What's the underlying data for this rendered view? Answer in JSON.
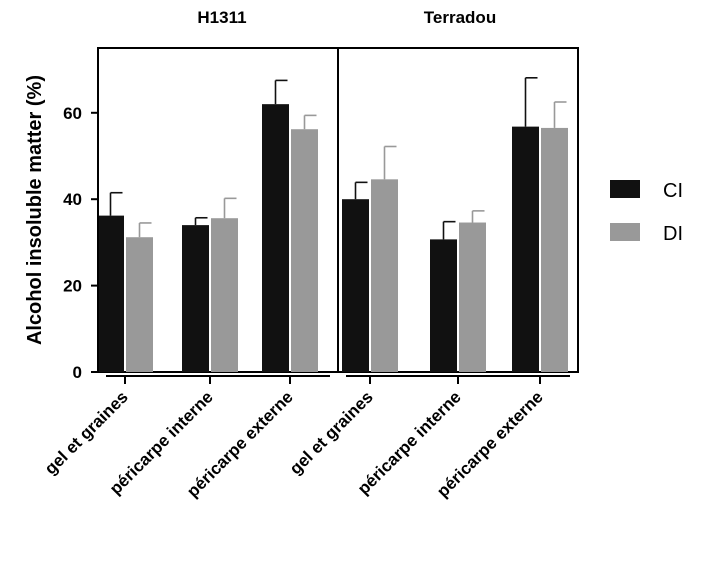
{
  "chart_data": {
    "type": "bar",
    "ylabel": "Alcohol insoluble matter (%)",
    "ylim": [
      0,
      75
    ],
    "yticks": [
      0,
      20,
      40,
      60
    ],
    "legend": {
      "placement": "right",
      "items": [
        {
          "name": "CI",
          "color": "#111111"
        },
        {
          "name": "DI",
          "color": "#999999"
        }
      ]
    },
    "panels": [
      {
        "title": "H1311",
        "categories": [
          "gel et graines",
          "péricarpe interne",
          "péricarpe externe"
        ],
        "series": [
          {
            "name": "CI",
            "values": [
              36.2,
              34.0,
              62.0
            ],
            "errors": [
              5.3,
              1.7,
              5.5
            ]
          },
          {
            "name": "DI",
            "values": [
              31.2,
              35.6,
              56.2
            ],
            "errors": [
              3.3,
              4.6,
              3.2
            ]
          }
        ]
      },
      {
        "title": "Terradou",
        "categories": [
          "gel et graines",
          "péricarpe interne",
          "péricarpe externe"
        ],
        "series": [
          {
            "name": "CI",
            "values": [
              40.0,
              30.7,
              56.8
            ],
            "errors": [
              3.9,
              4.1,
              11.3
            ]
          },
          {
            "name": "DI",
            "values": [
              44.6,
              34.6,
              56.5
            ],
            "errors": [
              7.6,
              2.7,
              6.0
            ]
          }
        ]
      }
    ]
  }
}
